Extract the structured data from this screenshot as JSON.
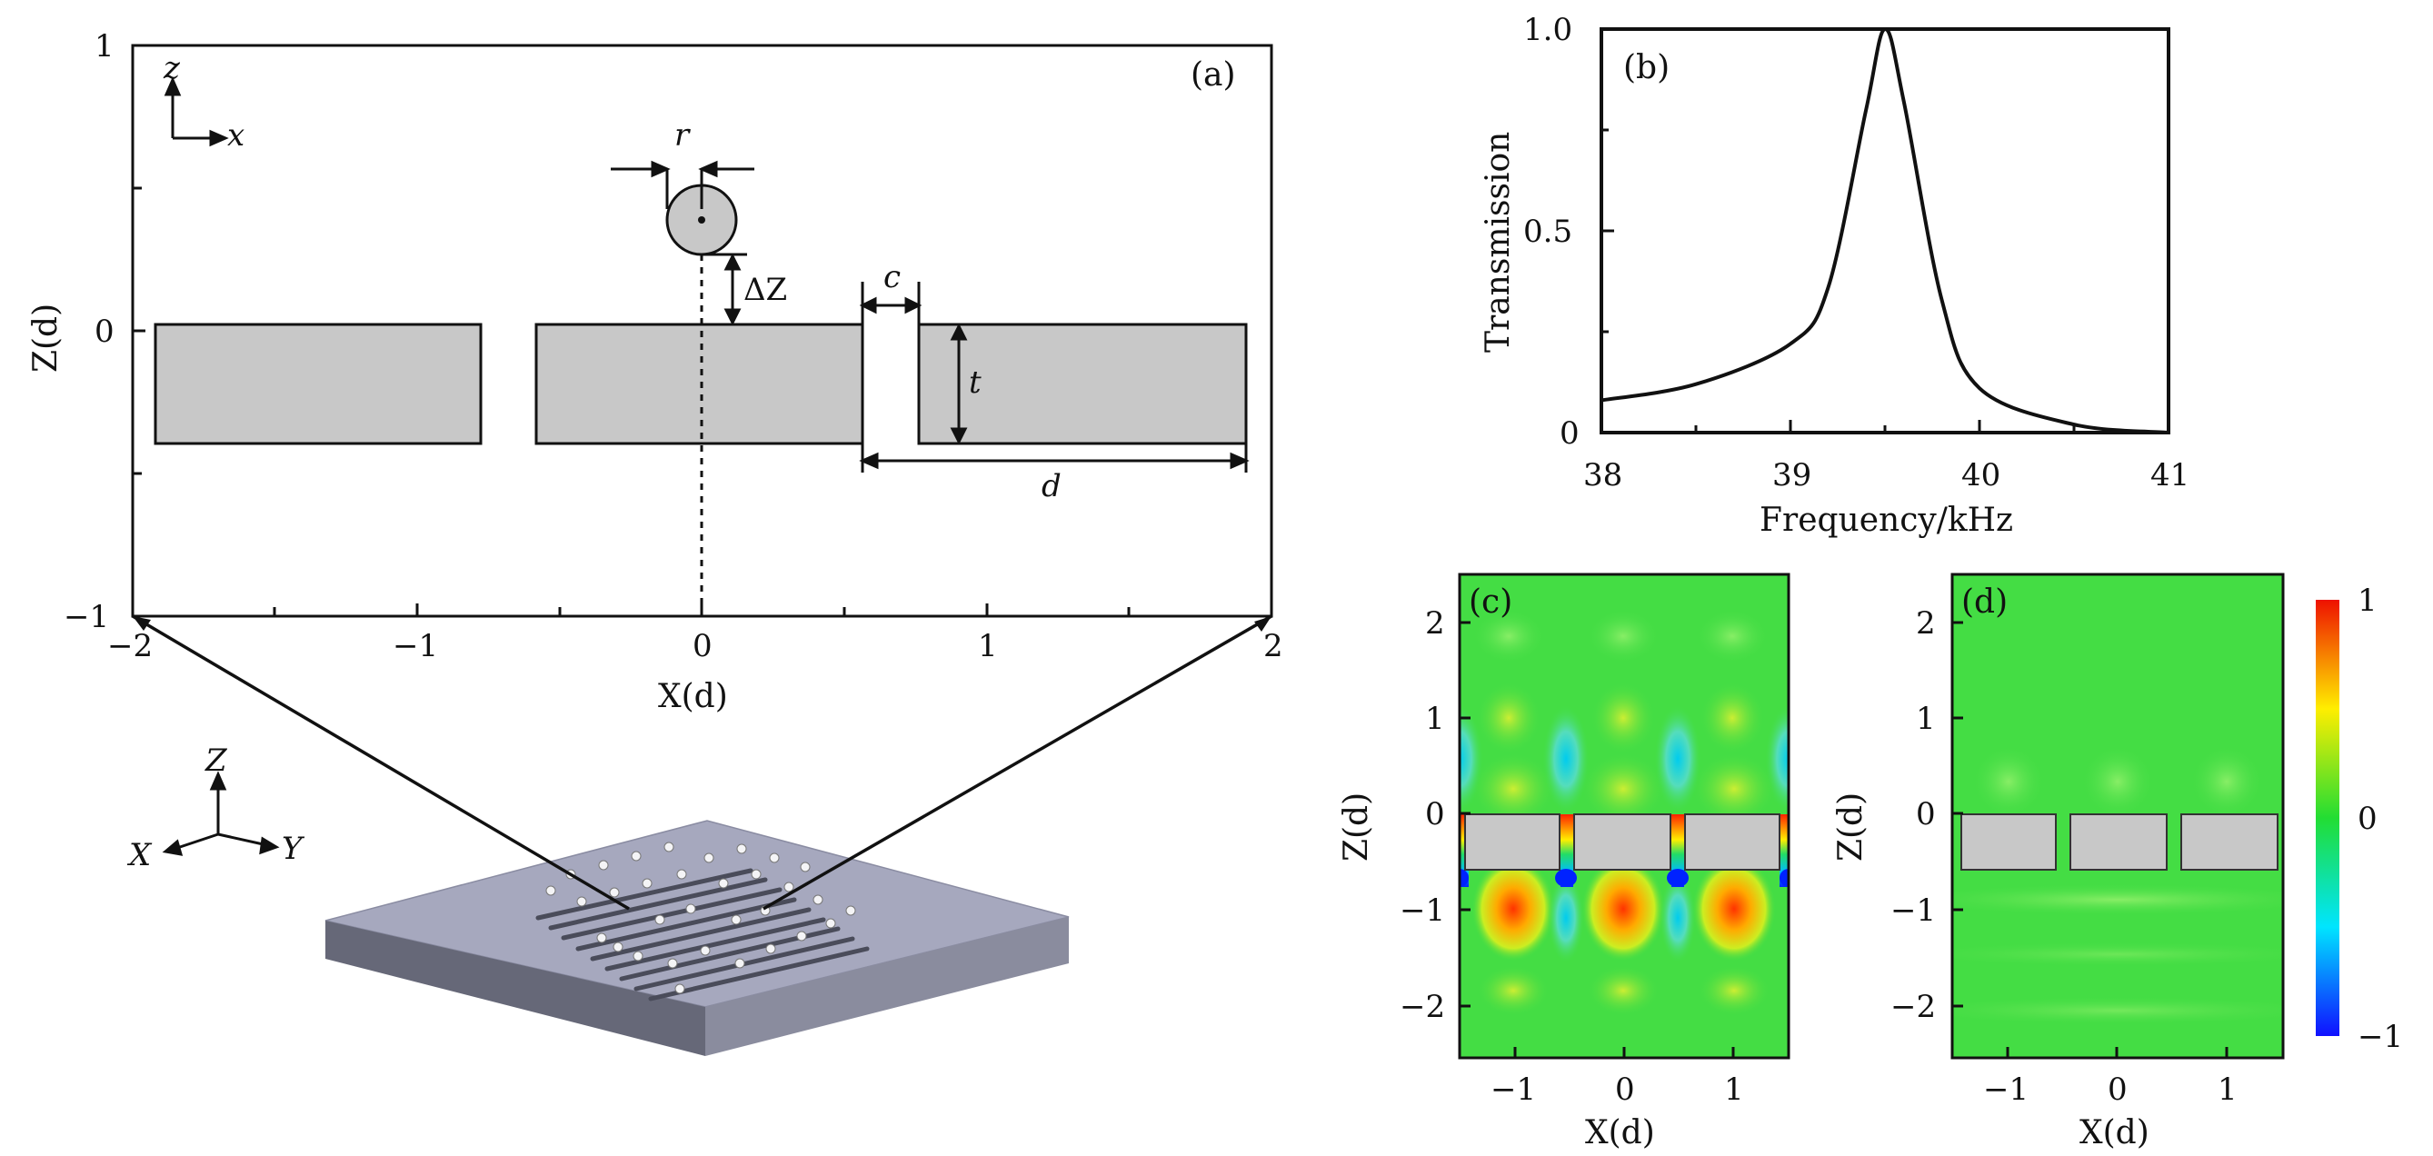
{
  "panel_a": {
    "tag": "(a)",
    "xlabel": "X(d)",
    "ylabel": "Z(d)",
    "x_ticks": [
      "−2",
      "−1",
      "0",
      "1",
      "2"
    ],
    "y_ticks": [
      "1",
      "0",
      "−1"
    ],
    "axis_arrow_z": "z",
    "axis_arrow_x": "x",
    "dim_r": "r",
    "dim_dz": "ΔZ",
    "dim_c": "c",
    "dim_t": "t",
    "dim_d": "d"
  },
  "perspective": {
    "axis_Z": "Z",
    "axis_X": "X",
    "axis_Y": "Y"
  },
  "panel_b": {
    "tag": "(b)",
    "xlabel": "Frequency/kHz",
    "ylabel": "Transmission",
    "x_ticks": [
      "38",
      "39",
      "40",
      "41"
    ],
    "y_ticks": [
      "1.0",
      "0.5",
      "0"
    ]
  },
  "panel_c": {
    "tag": "(c)",
    "xlabel": "X(d)",
    "ylabel": "Z(d)",
    "x_ticks": [
      "−1",
      "0",
      "1"
    ],
    "y_ticks": [
      "2",
      "1",
      "0",
      "−1",
      "−2"
    ]
  },
  "panel_d": {
    "tag": "(d)",
    "xlabel": "X(d)",
    "ylabel": "Z(d)",
    "x_ticks": [
      "−1",
      "0",
      "1"
    ],
    "y_ticks": [
      "2",
      "1",
      "0",
      "−1",
      "−2"
    ]
  },
  "colorbar": {
    "max_label": "1",
    "mid_label": "0",
    "min_label": "−1"
  },
  "chart_data": {
    "type": "line",
    "x": [
      38.0,
      38.5,
      39.0,
      39.2,
      39.4,
      39.5,
      39.6,
      39.8,
      40.0,
      40.5,
      41.0
    ],
    "values": [
      0.08,
      0.12,
      0.22,
      0.36,
      0.8,
      1.0,
      0.82,
      0.33,
      0.11,
      0.02,
      0.0
    ],
    "xlabel": "Frequency/kHz",
    "ylabel": "Transmission",
    "xlim": [
      38,
      41
    ],
    "ylim": [
      0,
      1.0
    ]
  }
}
